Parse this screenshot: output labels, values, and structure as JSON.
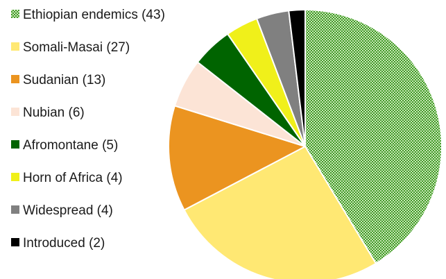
{
  "chart_data": {
    "type": "pie",
    "title": "",
    "legend_position": "left",
    "slices": [
      {
        "label": "Ethiopian endemics (43)",
        "value": 43,
        "color": "#4ea72e",
        "pattern": "checker"
      },
      {
        "label": "Somali-Masai (27)",
        "value": 27,
        "color": "#ffe873"
      },
      {
        "label": "Sudanian (13)",
        "value": 13,
        "color": "#eb9420"
      },
      {
        "label": "Nubian (6)",
        "value": 6,
        "color": "#fce4d6"
      },
      {
        "label": "Afromontane (5)",
        "value": 5,
        "color": "#006400"
      },
      {
        "label": "Horn of Africa (4)",
        "value": 4,
        "color": "#f0f01a"
      },
      {
        "label": "Widespread (4)",
        "value": 4,
        "color": "#808080"
      },
      {
        "label": "Introduced (2)",
        "value": 2,
        "color": "#000000"
      }
    ]
  }
}
